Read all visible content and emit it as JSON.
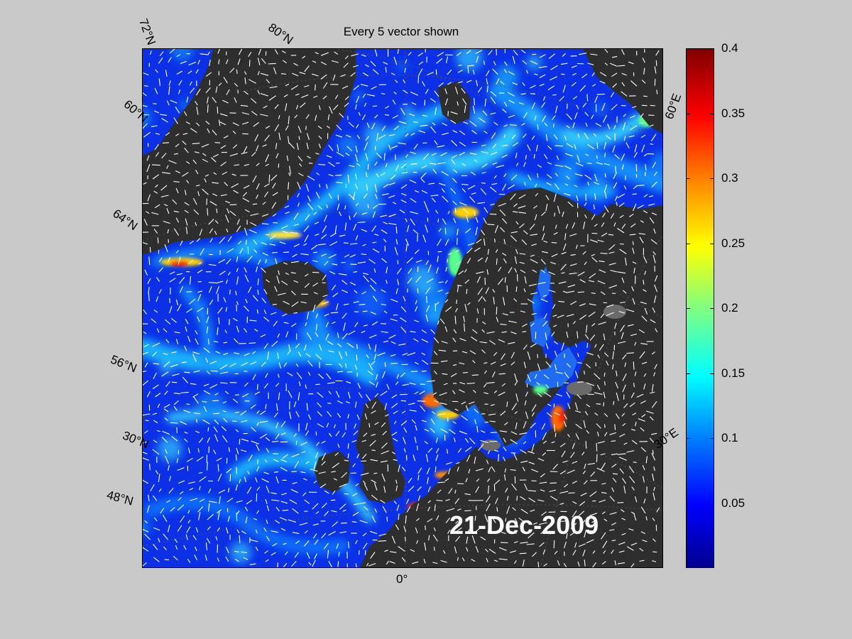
{
  "title": "Every 5 vector shown",
  "date_label": "21-Dec-2009",
  "lat_labels": [
    "72°N",
    "80°N",
    "60°N",
    "64°N",
    "56°N",
    "30°N",
    "48°N"
  ],
  "lon_labels": [
    "60°E",
    "30°E",
    "0°"
  ],
  "colorbar": {
    "min": 0,
    "max": 0.4,
    "ticks": [
      "0.4",
      "0.35",
      "0.3",
      "0.25",
      "0.2",
      "0.15",
      "0.1",
      "0.05"
    ],
    "tick_values": [
      0.4,
      0.35,
      0.3,
      0.25,
      0.2,
      0.15,
      0.1,
      0.05
    ],
    "colormap": "jet"
  },
  "colors": {
    "land": "#2e2e2e",
    "ocean_low": "#0a2ee8",
    "vectors": "#ffffff",
    "figure_background": "#c9c9c9"
  }
}
